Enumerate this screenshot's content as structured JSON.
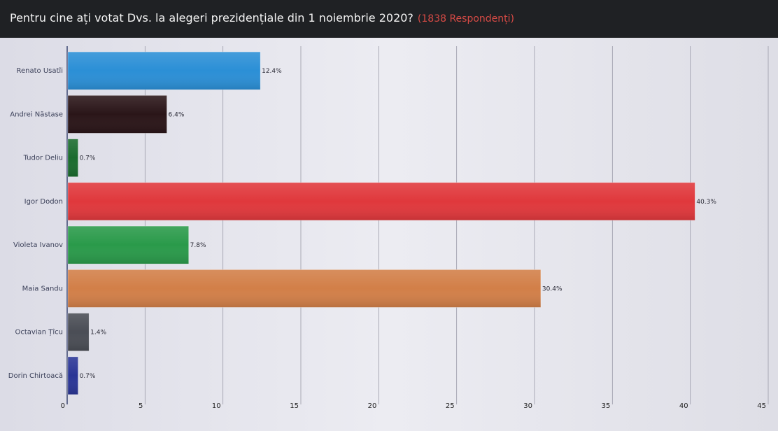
{
  "header": {
    "title": "Pentru cine ați votat Dvs. la alegeri prezidențiale din 1 noiembrie 2020?",
    "respondents": "(1838 Respondenți)"
  },
  "chart_data": {
    "type": "bar",
    "orientation": "horizontal",
    "categories": [
      "Renato Usatîi",
      "Andrei Năstase",
      "Tudor Deliu",
      "Igor Dodon",
      "Violeta Ivanov",
      "Maia Sandu",
      "Octavian Țîcu",
      "Dorin Chirtoacă"
    ],
    "values": [
      12.4,
      6.4,
      0.7,
      40.3,
      7.8,
      30.4,
      1.4,
      0.7
    ],
    "value_labels": [
      "12.4%",
      "6.4%",
      "0.7%",
      "40.3%",
      "7.8%",
      "30.4%",
      "1.4%",
      "0.7%"
    ],
    "colors": [
      "#2b8fd6",
      "#2a1518",
      "#1a6b2e",
      "#e0383c",
      "#2a9a4a",
      "#d27f48",
      "#4a4d55",
      "#2a3596"
    ],
    "title": "",
    "xlabel": "",
    "ylabel": "",
    "xlim": [
      0,
      45
    ],
    "xticks": [
      0,
      5,
      10,
      15,
      20,
      25,
      30,
      35,
      40,
      45
    ],
    "grid": true,
    "legend": "none"
  }
}
